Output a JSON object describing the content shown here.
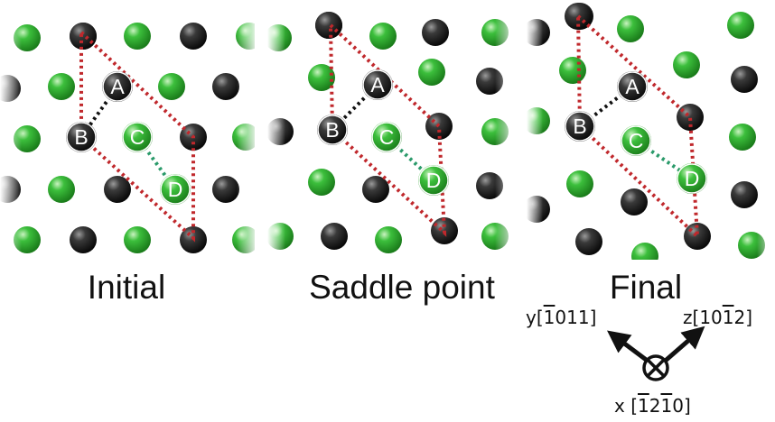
{
  "panels": [
    {
      "title": "Initial",
      "labels": {
        "A": "A",
        "B": "B",
        "C": "C",
        "D": "D"
      }
    },
    {
      "title": "Saddle point",
      "labels": {
        "A": "A",
        "B": "B",
        "C": "C",
        "D": "D"
      }
    },
    {
      "title": "Final",
      "labels": {
        "A": "A",
        "B": "B",
        "C": "C",
        "D": "D"
      }
    }
  ],
  "axes": {
    "y": {
      "prefix": "y",
      "open": "[",
      "bar_digit": "1",
      "rest": "011",
      "close": "]"
    },
    "z": {
      "prefix": "z",
      "open": "[",
      "pre": "10",
      "bar_digit": "1",
      "rest": "2",
      "close": "]"
    },
    "x": {
      "prefix": "x ",
      "open": "[",
      "bar1": "1",
      "mid": "2",
      "bar2": "1",
      "rest": "0",
      "close": "]"
    }
  },
  "colors": {
    "black_atom": "#1a1a1a",
    "green_atom": "#2fa82f",
    "cell_line": "#c0282c",
    "ab_line": "#111111",
    "cd_line": "#2a9a6a"
  },
  "icons": [
    "y-arrow-icon",
    "z-arrow-icon",
    "x-into-page-icon"
  ]
}
